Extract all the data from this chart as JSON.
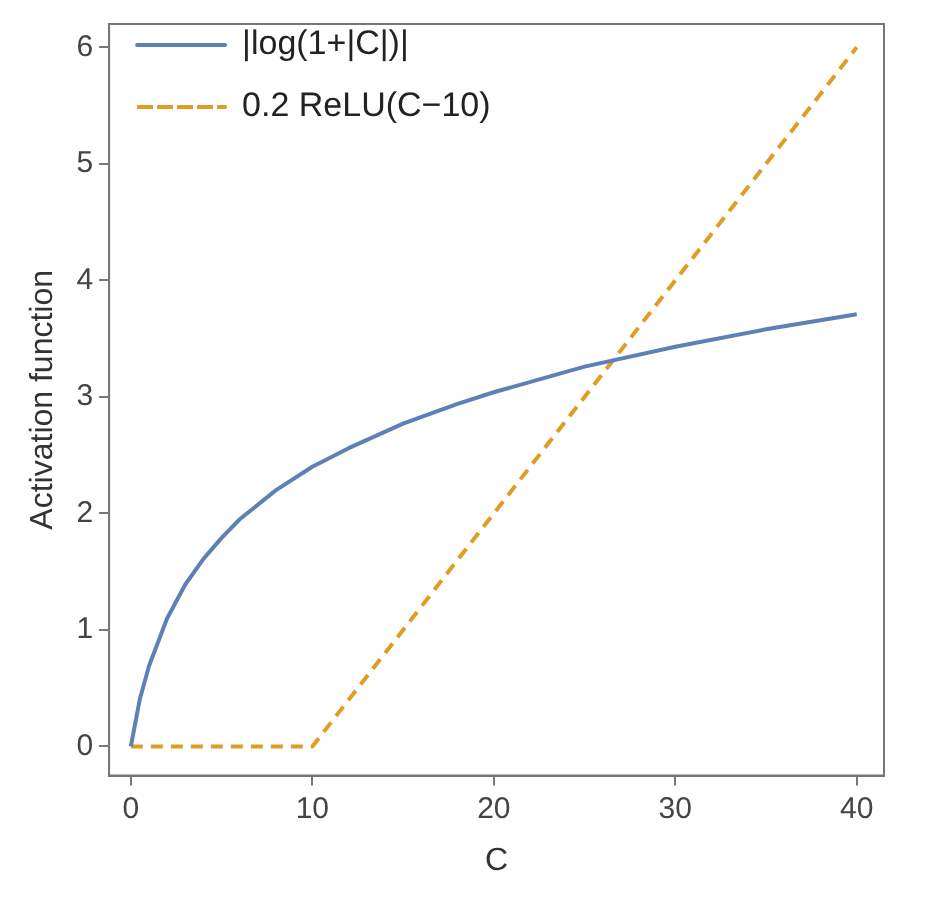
{
  "chart_data": {
    "type": "line",
    "xlabel": "C",
    "ylabel": "Activation function",
    "xlim": [
      -1.2,
      41.5
    ],
    "ylim": [
      -0.25,
      6.2
    ],
    "xticks": [
      0,
      10,
      20,
      30,
      40
    ],
    "yticks": [
      0,
      1,
      2,
      3,
      4,
      5,
      6
    ],
    "grid": false,
    "legend": "top left",
    "marker": "none",
    "series": [
      {
        "name": "|log(1+|C|)|",
        "color": "#5e81b5",
        "line_style": "solid",
        "x": [
          0,
          0.5,
          1,
          2,
          3,
          4,
          5,
          6,
          8,
          10,
          12,
          15,
          18,
          20,
          25,
          30,
          35,
          40
        ],
        "values": [
          0,
          0.41,
          0.69,
          1.1,
          1.39,
          1.61,
          1.79,
          1.95,
          2.2,
          2.4,
          2.56,
          2.77,
          2.94,
          3.04,
          3.26,
          3.43,
          3.58,
          3.71
        ]
      },
      {
        "name": "0.2 ReLU(C−10)",
        "color": "#e19c24",
        "line_style": "dashed",
        "x": [
          0,
          10,
          40
        ],
        "values": [
          0,
          0,
          6
        ]
      }
    ]
  }
}
